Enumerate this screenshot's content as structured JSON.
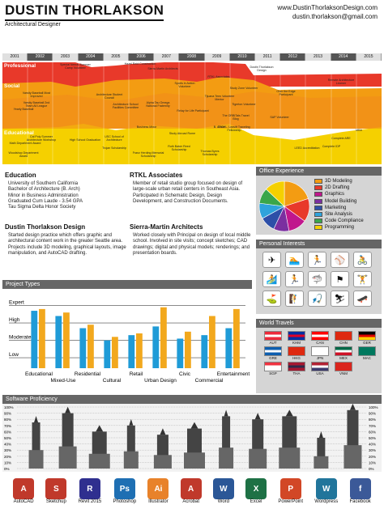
{
  "header": {
    "name": "DUSTIN THORLAKSON",
    "title": "Architectural Designer",
    "website": "www.DustinThorlaksonDesign.com",
    "email": "dustin.thorlakson@gmail.com"
  },
  "timeline": {
    "years": [
      "2001",
      "2002",
      "2003",
      "2004",
      "2005",
      "2006",
      "2007",
      "2008",
      "2009",
      "2010",
      "2011",
      "2012",
      "2013",
      "2014",
      "2015"
    ],
    "rows": {
      "professional": "Professional",
      "social": "Social",
      "educational": "Educational"
    },
    "events": [
      {
        "text": "Special Needs Summer Camp Volunteer"
      },
      {
        "text": "Hazel Reid Construction"
      },
      {
        "text": "Sierra-Martin Architects"
      },
      {
        "text": "RTKL Associates"
      },
      {
        "text": "Dustin Thorlakson Design"
      },
      {
        "text": "Varsity Baseball Most Improved"
      },
      {
        "text": "Varsity Baseball 2nd Team All League"
      },
      {
        "text": "Architecture Student Council"
      },
      {
        "text": "Architecture School Facilities Committee"
      },
      {
        "text": "Sports in Action Volunteer"
      },
      {
        "text": "Alpha Tau Omega National Fraternity"
      },
      {
        "text": "Relay for Life Participant"
      },
      {
        "text": "Tijuana Teen Volunteer Mentor"
      },
      {
        "text": "Study Zone Volunteer"
      },
      {
        "text": "The ORBITals Travel Blog"
      },
      {
        "text": "Over the Edge Participant"
      },
      {
        "text": "Dixie L. Leavitt Traveling Fellowship"
      },
      {
        "text": "Tigerton Volunteer"
      },
      {
        "text": "SAP Volunteer"
      },
      {
        "text": "Remote Architecture Learner"
      },
      {
        "text": "Yearly Baseball"
      },
      {
        "text": "Math Department Award"
      },
      {
        "text": "Cal Poly Summer Architecture Workshop"
      },
      {
        "text": "High School Graduation"
      },
      {
        "text": "USC School of Architecture"
      },
      {
        "text": "Trojan Scholarship"
      },
      {
        "text": "Business Minor"
      },
      {
        "text": "Study Abroad Rome"
      },
      {
        "text": "B. ARCH"
      },
      {
        "text": "Ruth Baker Reed Scholarship"
      },
      {
        "text": "Thomas Byers Scholarship"
      },
      {
        "text": "Franz Herding Memorial Scholarship"
      },
      {
        "text": "Woodshop Department Award"
      },
      {
        "text": "LEED Accreditation"
      },
      {
        "text": "MBA"
      },
      {
        "text": "Complete ARE"
      },
      {
        "text": "Complete IDP"
      }
    ]
  },
  "education": {
    "heading": "Education",
    "lines": [
      "University of Southern California",
      "Bachelor of Architecture (B. Arch)",
      "Minor in Business Administration",
      "Graduated Cum Laude - 3.54 GPA",
      "Tau Sigma Delta Honor Society"
    ]
  },
  "rtkl": {
    "heading": "RTKL Associates",
    "text": "Member of retail studio group focused on design of large-scale urban retail centers in Southeast Asia. Participated in Schematic Design, Design Development, and Construction Documents."
  },
  "dtd": {
    "heading": "Dustin Thorlakson Design",
    "text": "Started design practice which offers graphic and architectural content work in the greater Seattle area. Projects include 3D modeling, graphical layouts, image manipulation, and AutoCAD drafting."
  },
  "sierra": {
    "heading": "Sierra-Martin Architects",
    "text": "Worked closely with Principal on design of local middle school. Involved in site visits; concept sketches; CAD drawings; digital and physical models; renderings; and presentation boards."
  },
  "office": {
    "heading": "Office Experience",
    "items": [
      {
        "label": "3D Modeling",
        "color": "#f39c12",
        "value": 20
      },
      {
        "label": "2D Drafting",
        "color": "#e8392a",
        "value": 15
      },
      {
        "label": "Graphics",
        "color": "#c0178d",
        "value": 12
      },
      {
        "label": "Model Building",
        "color": "#7b2fa0",
        "value": 10
      },
      {
        "label": "Marketing",
        "color": "#2d4fa8",
        "value": 10
      },
      {
        "label": "Site Analysis",
        "color": "#2ea3dc",
        "value": 10
      },
      {
        "label": "Code Compliance",
        "color": "#3aa64a",
        "value": 10
      },
      {
        "label": "Programming",
        "color": "#f5d000",
        "value": 13
      }
    ]
  },
  "interests": {
    "heading": "Personal Interests",
    "icons": [
      "hiking-icon",
      "diving-icon",
      "swimming-icon",
      "baseball-icon",
      "cycling-icon",
      "surfing-icon",
      "running-icon",
      "shark-icon",
      "flag-icon",
      "weightlifting-icon",
      "golf-icon",
      "climbing-icon",
      "fishing-icon",
      "skiing-icon",
      "skateboard-icon",
      "stairs-icon"
    ],
    "glyphs": [
      "✈",
      "🏊",
      "🏃",
      "⚾",
      "🚴",
      "🏄",
      "🏃",
      "🦈",
      "⚑",
      "🏋",
      "⛳",
      "🧗",
      "🎣",
      "⛷",
      "🛹",
      "🏛"
    ]
  },
  "travels": {
    "heading": "World Travels",
    "countries": [
      {
        "code": "AUT",
        "c1": "#ed2939",
        "c2": "#ffffff",
        "c3": "#ed2939"
      },
      {
        "code": "KHM",
        "c1": "#032ea1",
        "c2": "#e00025",
        "c3": "#032ea1"
      },
      {
        "code": "CAN",
        "c1": "#ff0000",
        "c2": "#ffffff",
        "c3": "#ff0000"
      },
      {
        "code": "CHN",
        "c1": "#de2910",
        "c2": "#de2910",
        "c3": "#de2910"
      },
      {
        "code": "GER",
        "c1": "#000000",
        "c2": "#dd0000",
        "c3": "#ffce00"
      },
      {
        "code": "GRE",
        "c1": "#0d5eaf",
        "c2": "#ffffff",
        "c3": "#0d5eaf"
      },
      {
        "code": "HKG",
        "c1": "#de2910",
        "c2": "#de2910",
        "c3": "#de2910"
      },
      {
        "code": "JPN",
        "c1": "#ffffff",
        "c2": "#ffffff",
        "c3": "#ffffff"
      },
      {
        "code": "MEX",
        "c1": "#006847",
        "c2": "#ffffff",
        "c3": "#ce1126"
      },
      {
        "code": "MAC",
        "c1": "#00785e",
        "c2": "#00785e",
        "c3": "#00785e"
      },
      {
        "code": "SGP",
        "c1": "#ef3340",
        "c2": "#ffffff",
        "c3": "#ffffff"
      },
      {
        "code": "THA",
        "c1": "#a51931",
        "c2": "#2d2a4a",
        "c3": "#a51931"
      },
      {
        "code": "USA",
        "c1": "#b22234",
        "c2": "#ffffff",
        "c3": "#3c3b6e"
      },
      {
        "code": "VNM",
        "c1": "#da251d",
        "c2": "#da251d",
        "c3": "#da251d"
      }
    ]
  },
  "projects": {
    "heading": "Project Types",
    "chart_data": {
      "type": "bar",
      "levels": [
        "Expert",
        "High",
        "Moderate",
        "Low"
      ],
      "categories": [
        "Educational",
        "Mixed-Use",
        "Residential",
        "Cultural",
        "Retail",
        "Urban Design",
        "Civic",
        "Commercial",
        "Entertainment"
      ],
      "series": [
        {
          "color": "#1f9bd7",
          "values": [
            3.3,
            3.0,
            2.3,
            1.6,
            1.9,
            2.4,
            1.7,
            1.9,
            2.3
          ]
        },
        {
          "color": "#f2a81d",
          "values": [
            3.4,
            3.2,
            2.5,
            1.8,
            2.0,
            3.5,
            2.1,
            3.0,
            3.4
          ]
        }
      ],
      "ylim": [
        0,
        4
      ]
    }
  },
  "software": {
    "heading": "Software Proficiency",
    "ticks": [
      "100%",
      "90%",
      "80%",
      "70%",
      "60%",
      "50%",
      "40%",
      "30%",
      "20%",
      "10%",
      "0%"
    ],
    "items": [
      {
        "label": "AutoCAD",
        "abbr": "A",
        "color": "#c0392b",
        "value": 75
      },
      {
        "label": "Sketchup",
        "abbr": "S",
        "color": "#c0392b",
        "value": 90
      },
      {
        "label": "Revit 2015",
        "abbr": "R",
        "color": "#2f2f8f",
        "value": 60
      },
      {
        "label": "Photoshop",
        "abbr": "Ps",
        "color": "#1e6fb3",
        "value": 70
      },
      {
        "label": "Illustrator",
        "abbr": "Ai",
        "color": "#e8822a",
        "value": 55
      },
      {
        "label": "Acrobat",
        "abbr": "A",
        "color": "#c0392b",
        "value": 65
      },
      {
        "label": "Word",
        "abbr": "W",
        "color": "#2b5797",
        "value": 85
      },
      {
        "label": "Excel",
        "abbr": "X",
        "color": "#1e7145",
        "value": 80
      },
      {
        "label": "PowerPoint",
        "abbr": "P",
        "color": "#d24726",
        "value": 85
      },
      {
        "label": "Wordpress",
        "abbr": "W",
        "color": "#21759b",
        "value": 50
      },
      {
        "label": "Facebook",
        "abbr": "f",
        "color": "#3b5998",
        "value": 95
      }
    ]
  }
}
